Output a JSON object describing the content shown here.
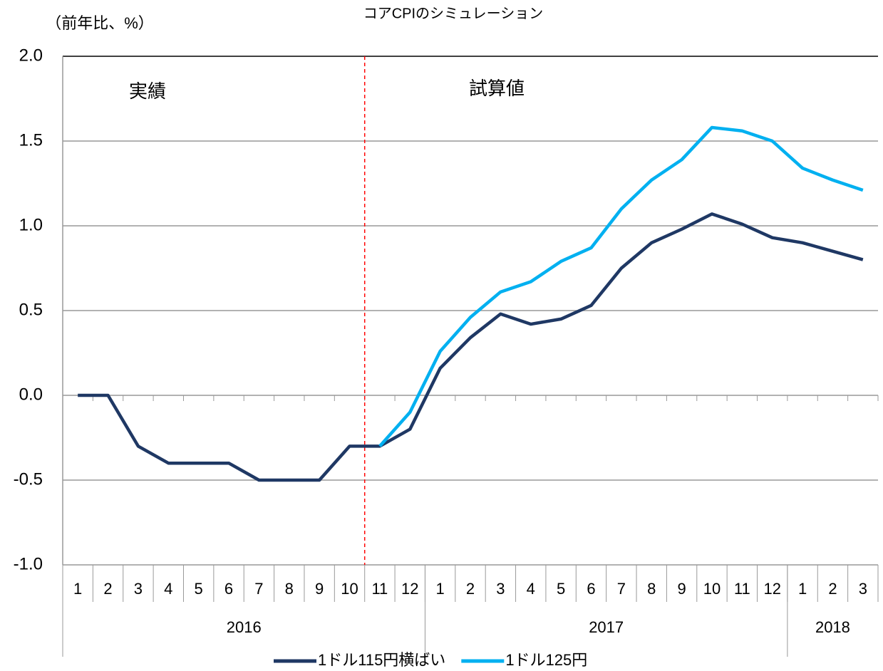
{
  "chart_data": {
    "type": "line",
    "title": "コアCPIのシミュレーション",
    "y_label": "（前年比、%）",
    "annotations": [
      "実績",
      "試算値"
    ],
    "categories": [
      "1",
      "2",
      "3",
      "4",
      "5",
      "6",
      "7",
      "8",
      "9",
      "10",
      "11",
      "12",
      "1",
      "2",
      "3",
      "4",
      "5",
      "6",
      "7",
      "8",
      "9",
      "10",
      "11",
      "12",
      "1",
      "2",
      "3"
    ],
    "years": [
      "2016",
      "2017",
      "2018"
    ],
    "series": [
      {
        "name": "1ドル115円横ばい",
        "color": "#1f3864",
        "values": [
          0,
          0,
          -0.3,
          -0.4,
          -0.4,
          -0.4,
          -0.5,
          -0.5,
          -0.5,
          -0.3,
          -0.3,
          -0.2,
          0.16,
          0.34,
          0.48,
          0.42,
          0.45,
          0.53,
          0.75,
          0.9,
          0.98,
          1.07,
          1.01,
          0.93,
          0.9,
          0.85,
          0.8
        ]
      },
      {
        "name": "1ドル125円",
        "color": "#00b0f0",
        "values": [
          null,
          null,
          null,
          null,
          null,
          null,
          null,
          null,
          null,
          null,
          -0.3,
          -0.1,
          0.26,
          0.46,
          0.61,
          0.67,
          0.79,
          0.87,
          1.1,
          1.27,
          1.39,
          1.58,
          1.56,
          1.5,
          1.34,
          1.27,
          1.21
        ]
      }
    ],
    "ylim": [
      -1,
      2
    ],
    "yticks": [
      {
        "value": -1,
        "label": "-1.0"
      },
      -0.5,
      {
        "value": 0,
        "label": "0.0"
      },
      0.5,
      {
        "value": 1,
        "label": "1.0"
      },
      1.5,
      {
        "value": 2,
        "label": "2.0"
      }
    ],
    "grid": true,
    "legend": "bottom"
  }
}
